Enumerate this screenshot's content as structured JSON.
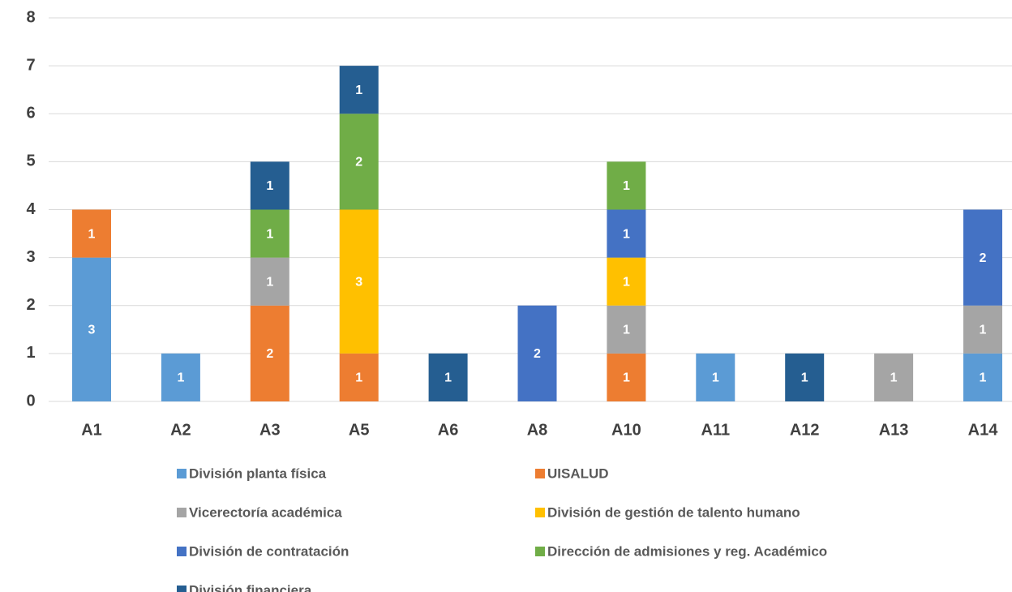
{
  "chart_data": {
    "type": "stacked_bar",
    "categories": [
      "A1",
      "A2",
      "A3",
      "A5",
      "A6",
      "A8",
      "A10",
      "A11",
      "A12",
      "A13",
      "A14"
    ],
    "series": [
      {
        "name": "División planta física",
        "color": "#5b9bd5",
        "values": [
          3,
          1,
          null,
          null,
          null,
          null,
          null,
          1,
          null,
          null,
          1
        ]
      },
      {
        "name": "UISALUD",
        "color": "#ed7d31",
        "values": [
          1,
          null,
          2,
          1,
          null,
          null,
          1,
          null,
          null,
          null,
          null
        ]
      },
      {
        "name": "Vicerectoría académica",
        "color": "#a5a5a5",
        "values": [
          null,
          null,
          1,
          null,
          null,
          null,
          1,
          null,
          null,
          1,
          1
        ]
      },
      {
        "name": "División de gestión de talento humano",
        "color": "#ffc000",
        "values": [
          null,
          null,
          null,
          3,
          null,
          null,
          1,
          null,
          null,
          null,
          null
        ]
      },
      {
        "name": "División de contratación",
        "color": "#4472c4",
        "values": [
          null,
          null,
          null,
          null,
          null,
          2,
          1,
          null,
          null,
          null,
          2
        ]
      },
      {
        "name": "Dirección de admisiones y reg. Académico",
        "color": "#70ad47",
        "values": [
          null,
          null,
          1,
          2,
          null,
          null,
          1,
          null,
          null,
          null,
          null
        ]
      },
      {
        "name": "División financiera",
        "color": "#255e91",
        "values": [
          null,
          null,
          1,
          1,
          1,
          null,
          null,
          null,
          1,
          null,
          null
        ]
      }
    ],
    "ylim": [
      0,
      8
    ],
    "yticks": [
      0,
      1,
      2,
      3,
      4,
      5,
      6,
      7,
      8
    ],
    "grid": true,
    "legend": "bottom"
  }
}
